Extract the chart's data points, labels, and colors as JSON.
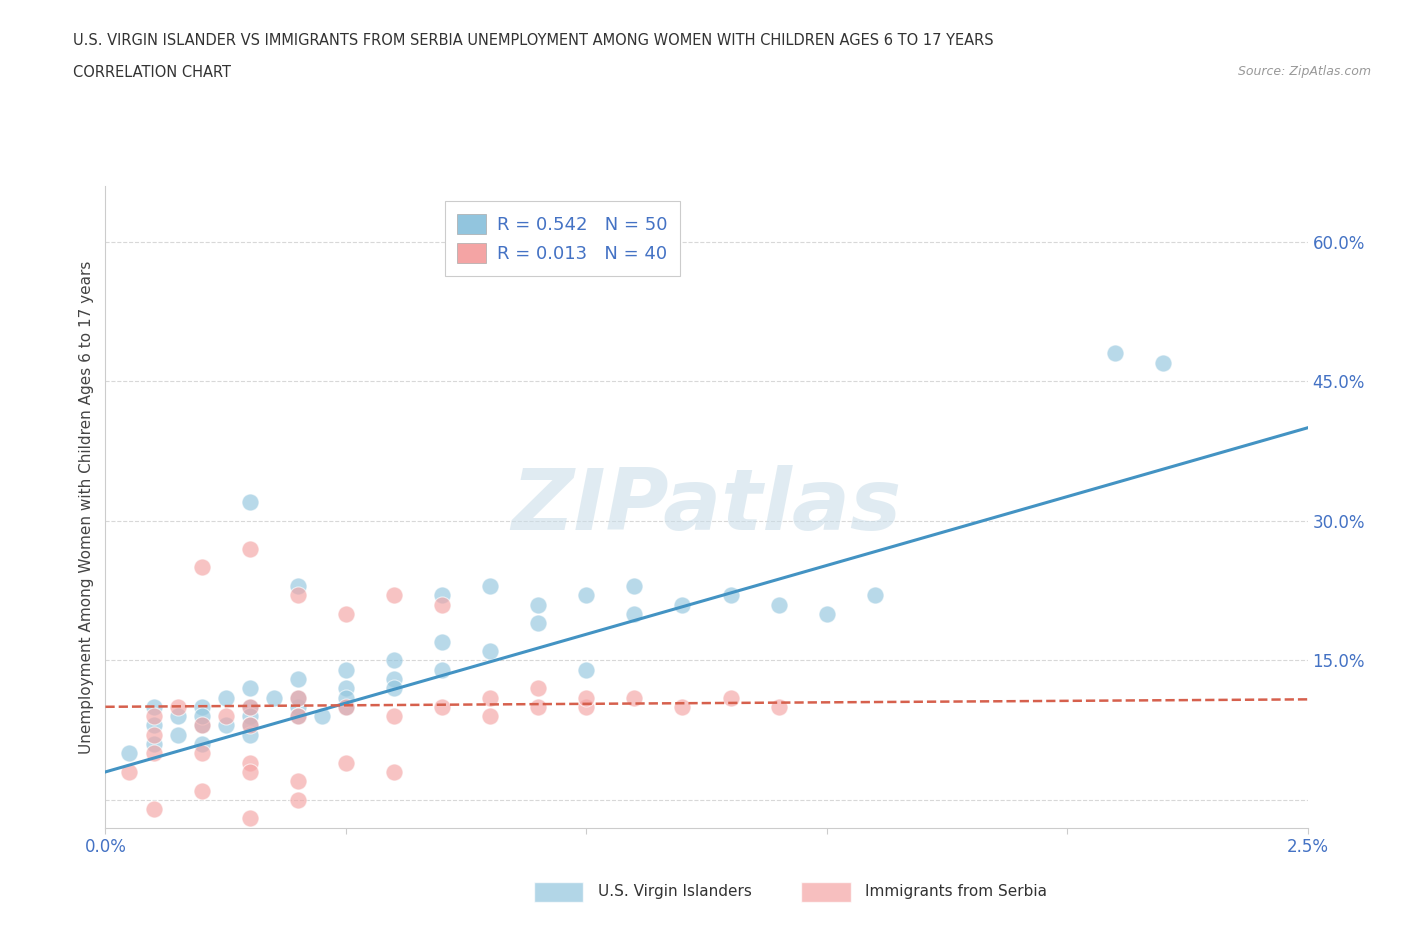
{
  "title_line1": "U.S. VIRGIN ISLANDER VS IMMIGRANTS FROM SERBIA UNEMPLOYMENT AMONG WOMEN WITH CHILDREN AGES 6 TO 17 YEARS",
  "title_line2": "CORRELATION CHART",
  "source_text": "Source: ZipAtlas.com",
  "ylabel": "Unemployment Among Women with Children Ages 6 to 17 years",
  "xlim": [
    0.0,
    0.025
  ],
  "ylim": [
    -0.03,
    0.66
  ],
  "xticks": [
    0.0,
    0.005,
    0.01,
    0.015,
    0.02,
    0.025
  ],
  "xticklabels": [
    "0.0%",
    "",
    "",
    "",
    "",
    "2.5%"
  ],
  "yticks_right": [
    0.0,
    0.15,
    0.3,
    0.45,
    0.6
  ],
  "yticklabels_right": [
    "",
    "15.0%",
    "30.0%",
    "45.0%",
    "60.0%"
  ],
  "blue_color": "#92c5de",
  "pink_color": "#f4a4a4",
  "blue_line_color": "#4393c3",
  "pink_line_color": "#d6604d",
  "legend_R1": "R = 0.542",
  "legend_N1": "N = 50",
  "legend_R2": "R = 0.013",
  "legend_N2": "N = 40",
  "watermark_text": "ZIPatlas",
  "blue_scatter_x": [
    0.0005,
    0.001,
    0.001,
    0.001,
    0.0015,
    0.0015,
    0.002,
    0.002,
    0.002,
    0.002,
    0.0025,
    0.0025,
    0.003,
    0.003,
    0.003,
    0.003,
    0.003,
    0.0035,
    0.004,
    0.004,
    0.004,
    0.004,
    0.0045,
    0.005,
    0.005,
    0.005,
    0.005,
    0.006,
    0.006,
    0.006,
    0.007,
    0.007,
    0.007,
    0.008,
    0.008,
    0.009,
    0.009,
    0.01,
    0.01,
    0.011,
    0.011,
    0.012,
    0.013,
    0.014,
    0.015,
    0.016,
    0.003,
    0.004,
    0.022,
    0.021
  ],
  "blue_scatter_y": [
    0.05,
    0.08,
    0.06,
    0.1,
    0.07,
    0.09,
    0.08,
    0.06,
    0.1,
    0.09,
    0.11,
    0.08,
    0.1,
    0.09,
    0.12,
    0.08,
    0.07,
    0.11,
    0.1,
    0.09,
    0.13,
    0.11,
    0.09,
    0.12,
    0.1,
    0.14,
    0.11,
    0.13,
    0.15,
    0.12,
    0.17,
    0.14,
    0.22,
    0.23,
    0.16,
    0.19,
    0.21,
    0.22,
    0.14,
    0.2,
    0.23,
    0.21,
    0.22,
    0.21,
    0.2,
    0.22,
    0.32,
    0.23,
    0.47,
    0.48
  ],
  "pink_scatter_x": [
    0.0005,
    0.001,
    0.001,
    0.001,
    0.0015,
    0.002,
    0.002,
    0.0025,
    0.003,
    0.003,
    0.003,
    0.004,
    0.004,
    0.004,
    0.005,
    0.005,
    0.006,
    0.006,
    0.007,
    0.007,
    0.008,
    0.008,
    0.009,
    0.009,
    0.01,
    0.01,
    0.011,
    0.012,
    0.013,
    0.014,
    0.002,
    0.003,
    0.003,
    0.004,
    0.005,
    0.006,
    0.001,
    0.002,
    0.003,
    0.004
  ],
  "pink_scatter_y": [
    0.03,
    0.05,
    0.07,
    0.09,
    0.1,
    0.08,
    0.25,
    0.09,
    0.1,
    0.08,
    0.27,
    0.09,
    0.11,
    0.22,
    0.1,
    0.2,
    0.09,
    0.22,
    0.1,
    0.21,
    0.09,
    0.11,
    0.1,
    0.12,
    0.1,
    0.11,
    0.11,
    0.1,
    0.11,
    0.1,
    0.05,
    0.04,
    0.03,
    0.02,
    0.04,
    0.03,
    -0.01,
    0.01,
    -0.02,
    0.0
  ],
  "blue_trend_x": [
    0.0,
    0.025
  ],
  "blue_trend_y": [
    0.03,
    0.4
  ],
  "pink_trend_x": [
    0.0,
    0.025
  ],
  "pink_trend_y": [
    0.1,
    0.108
  ],
  "background_color": "#ffffff",
  "grid_color": "#d8d8d8"
}
